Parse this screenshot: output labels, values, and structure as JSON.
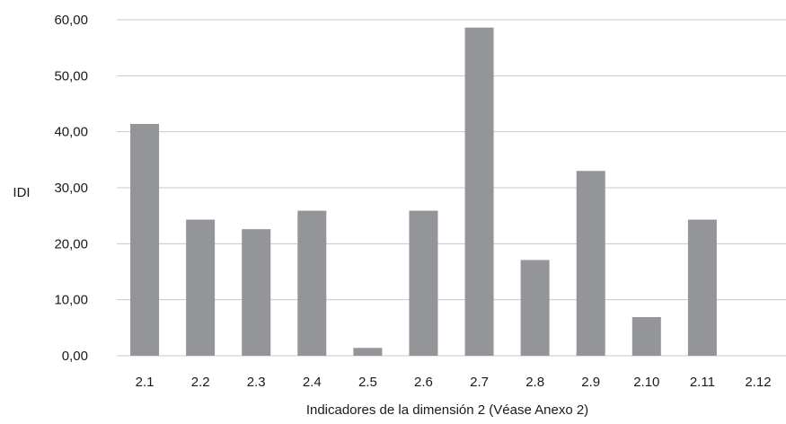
{
  "chart_data": {
    "type": "bar",
    "title": "",
    "xlabel": "Indicadores de la dimensión 2 (Véase Anexo 2)",
    "ylabel": "IDI",
    "categories": [
      "2.1",
      "2.2",
      "2.3",
      "2.4",
      "2.5",
      "2.6",
      "2.7",
      "2.8",
      "2.9",
      "2.10",
      "2.11",
      "2.12"
    ],
    "series": [
      {
        "values": [
          41.4,
          24.3,
          22.6,
          25.9,
          1.4,
          25.9,
          58.6,
          17.1,
          33.0,
          6.9,
          24.3,
          0
        ]
      }
    ],
    "ylim": [
      0,
      60
    ],
    "yticks": [
      "0,00",
      "10,00",
      "20,00",
      "30,00",
      "40,00",
      "50,00",
      "60,00"
    ],
    "grid": true,
    "legend": "none",
    "bar_color": "#939598",
    "grid_color": "#c8c8c8"
  }
}
